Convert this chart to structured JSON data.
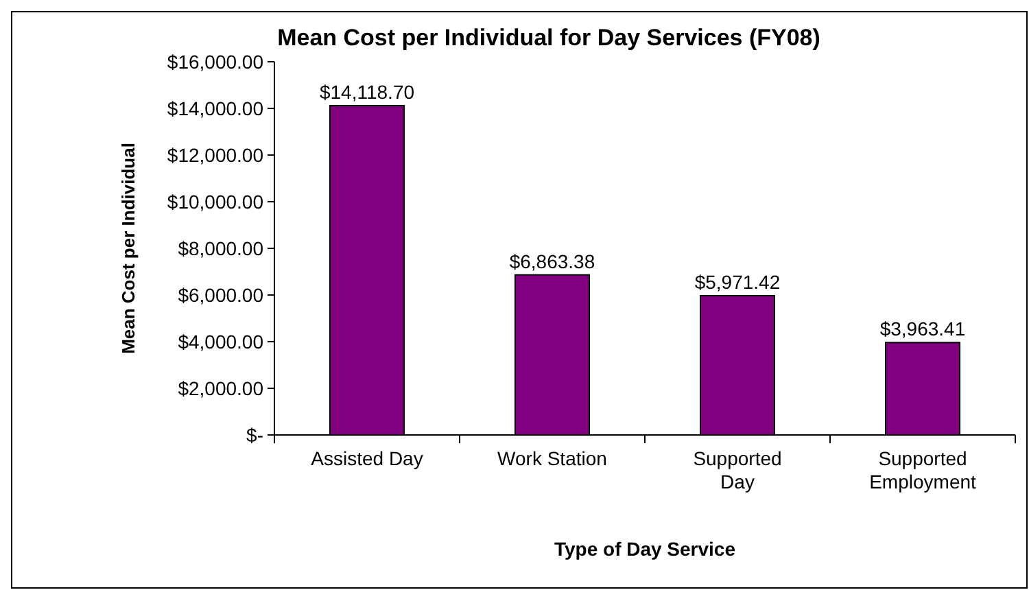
{
  "chart_data": {
    "type": "bar",
    "title": "Mean Cost per Individual for Day Services (FY08)",
    "xlabel": "Type of Day Service",
    "ylabel": "Mean Cost per Individual",
    "categories": [
      "Assisted Day",
      "Work Station",
      "Supported Day",
      "Supported Employment"
    ],
    "values": [
      14118.7,
      6863.38,
      5971.42,
      3963.41
    ],
    "value_labels": [
      "$14,118.70",
      "$6,863.38",
      "$5,971.42",
      "$3,963.41"
    ],
    "color": "#800080",
    "ylim": [
      0,
      16000
    ],
    "yticks": [
      {
        "value": 0,
        "label": "$-"
      },
      {
        "value": 2000,
        "label": "$2,000.00"
      },
      {
        "value": 4000,
        "label": "$4,000.00"
      },
      {
        "value": 6000,
        "label": "$6,000.00"
      },
      {
        "value": 8000,
        "label": "$8,000.00"
      },
      {
        "value": 10000,
        "label": "$10,000.00"
      },
      {
        "value": 12000,
        "label": "$12,000.00"
      },
      {
        "value": 14000,
        "label": "$14,000.00"
      },
      {
        "value": 16000,
        "label": "$16,000.00"
      }
    ],
    "grid": false
  }
}
